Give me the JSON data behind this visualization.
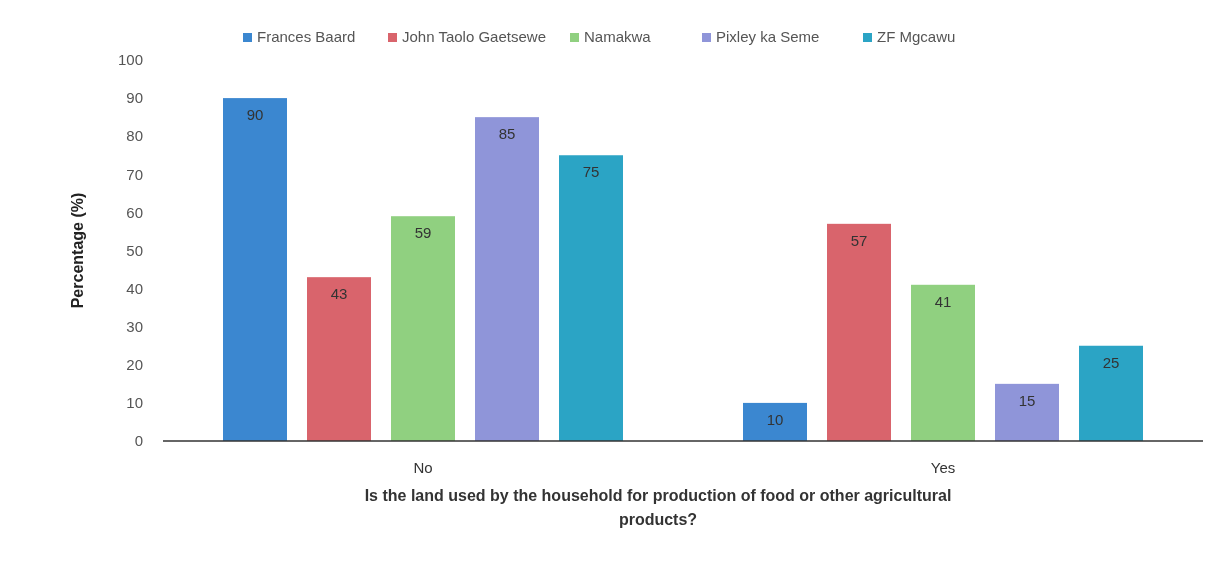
{
  "chart_data": {
    "type": "bar",
    "categories": [
      "No",
      "Yes"
    ],
    "series": [
      {
        "name": "Frances Baard",
        "color": "#3b87d0",
        "values": [
          90,
          10
        ]
      },
      {
        "name": "John Taolo Gaetsewe",
        "color": "#d9646c",
        "values": [
          43,
          57
        ]
      },
      {
        "name": "Namakwa",
        "color": "#90d080",
        "values": [
          59,
          41
        ]
      },
      {
        "name": "Pixley ka Seme",
        "color": "#8f95d9",
        "values": [
          85,
          15
        ]
      },
      {
        "name": "ZF Mgcawu",
        "color": "#2ba4c5",
        "values": [
          75,
          25
        ]
      }
    ],
    "ylabel": "Percentage (%)",
    "xlabel": "Is the land used by the household for production of food or other agricultural products?",
    "ylim": [
      0,
      100
    ],
    "yticks": [
      0,
      10,
      20,
      30,
      40,
      50,
      60,
      70,
      80,
      90,
      100
    ],
    "data_labels": true,
    "legend": "top",
    "grid": false
  }
}
